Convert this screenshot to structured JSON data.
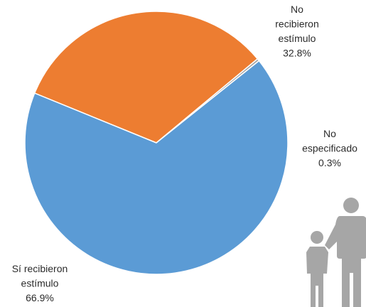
{
  "chart_data": {
    "type": "pie",
    "title": "",
    "slices": [
      {
        "label_lines": [
          "No",
          "recibieron",
          "estímulo"
        ],
        "percent_label": "32.8%",
        "value": 32.8,
        "color": "#ED7D31"
      },
      {
        "label_lines": [
          "No",
          "especificado"
        ],
        "percent_label": "0.3%",
        "value": 0.3,
        "color": "#A5A5A5"
      },
      {
        "label_lines": [
          "Sí recibieron",
          "estímulo"
        ],
        "percent_label": "66.9%",
        "value": 66.9,
        "color": "#5B9BD5"
      }
    ],
    "legend": "none"
  },
  "decoration": {
    "icon": "parent-child-icon",
    "color": "#A6A6A6"
  }
}
